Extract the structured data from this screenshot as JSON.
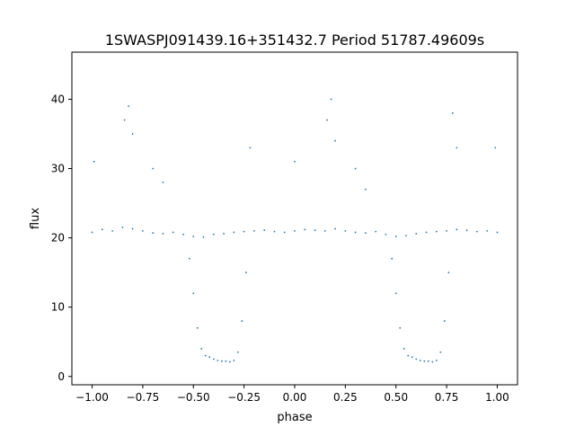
{
  "chart_data": {
    "type": "scatter",
    "title": "1SWASPJ091439.16+351432.7 Period 51787.49609s",
    "xlabel": "phase",
    "ylabel": "flux",
    "xlim": [
      -1.1,
      1.1
    ],
    "ylim": [
      -1.2,
      46.8
    ],
    "xticks": [
      -1.0,
      -0.75,
      -0.5,
      -0.25,
      0.0,
      0.25,
      0.5,
      0.75,
      1.0
    ],
    "xtick_labels": [
      "−1.00",
      "−0.75",
      "−0.50",
      "−0.25",
      "0.00",
      "0.25",
      "0.50",
      "0.75",
      "1.00"
    ],
    "yticks": [
      0,
      10,
      20,
      30,
      40
    ],
    "ytick_labels": [
      "0",
      "10",
      "20",
      "30",
      "40"
    ],
    "grid": false,
    "point_color": "#1f77b4",
    "series": [
      {
        "x": [
          -1.0,
          -0.95,
          -0.9,
          -0.85,
          -0.8,
          -0.75,
          -0.7,
          -0.65,
          -0.6,
          -0.55,
          -0.5,
          -0.45,
          -0.4,
          -0.35,
          -0.3,
          -0.25,
          -0.2,
          -0.15,
          -0.1,
          -0.05,
          0.0,
          0.05,
          0.1,
          0.15,
          0.2,
          0.25,
          0.3,
          0.35,
          0.4,
          0.45,
          0.5,
          0.55,
          0.6,
          0.65,
          0.7,
          0.75,
          0.8,
          0.85,
          0.9,
          0.95,
          1.0,
          -0.52,
          -0.5,
          -0.48,
          -0.46,
          -0.44,
          -0.42,
          -0.4,
          -0.38,
          -0.36,
          -0.34,
          -0.32,
          -0.3,
          -0.28,
          -0.26,
          -0.24,
          0.48,
          0.5,
          0.52,
          0.54,
          0.56,
          0.58,
          0.6,
          0.62,
          0.64,
          0.66,
          0.68,
          0.7,
          0.72,
          0.74,
          0.76,
          -0.84,
          -0.82,
          -0.8,
          -0.7,
          -0.65,
          0.16,
          0.18,
          0.2,
          0.3,
          0.35,
          -0.99,
          0.0,
          0.99,
          -0.22,
          0.78,
          0.8
        ],
        "y": [
          20.8,
          21.2,
          21.0,
          21.5,
          21.3,
          21.0,
          20.7,
          20.6,
          20.8,
          20.5,
          20.2,
          20.1,
          20.5,
          20.6,
          20.8,
          20.9,
          21.0,
          21.1,
          20.9,
          20.8,
          21.0,
          21.2,
          21.1,
          21.0,
          21.3,
          21.0,
          20.8,
          20.7,
          20.9,
          20.5,
          20.2,
          20.3,
          20.6,
          20.8,
          20.9,
          21.0,
          21.2,
          21.1,
          20.9,
          21.0,
          20.8,
          17.0,
          12.0,
          7.0,
          4.0,
          3.0,
          2.8,
          2.5,
          2.3,
          2.2,
          2.2,
          2.1,
          2.3,
          3.5,
          8.0,
          15.0,
          17.0,
          12.0,
          7.0,
          4.0,
          3.0,
          2.8,
          2.5,
          2.3,
          2.2,
          2.2,
          2.1,
          2.3,
          3.5,
          8.0,
          15.0,
          37.0,
          39.0,
          35.0,
          30.0,
          28.0,
          37.0,
          40.0,
          34.0,
          30.0,
          27.0,
          31.0,
          31.0,
          33.0,
          33.0,
          38.0,
          33.0
        ]
      }
    ]
  }
}
